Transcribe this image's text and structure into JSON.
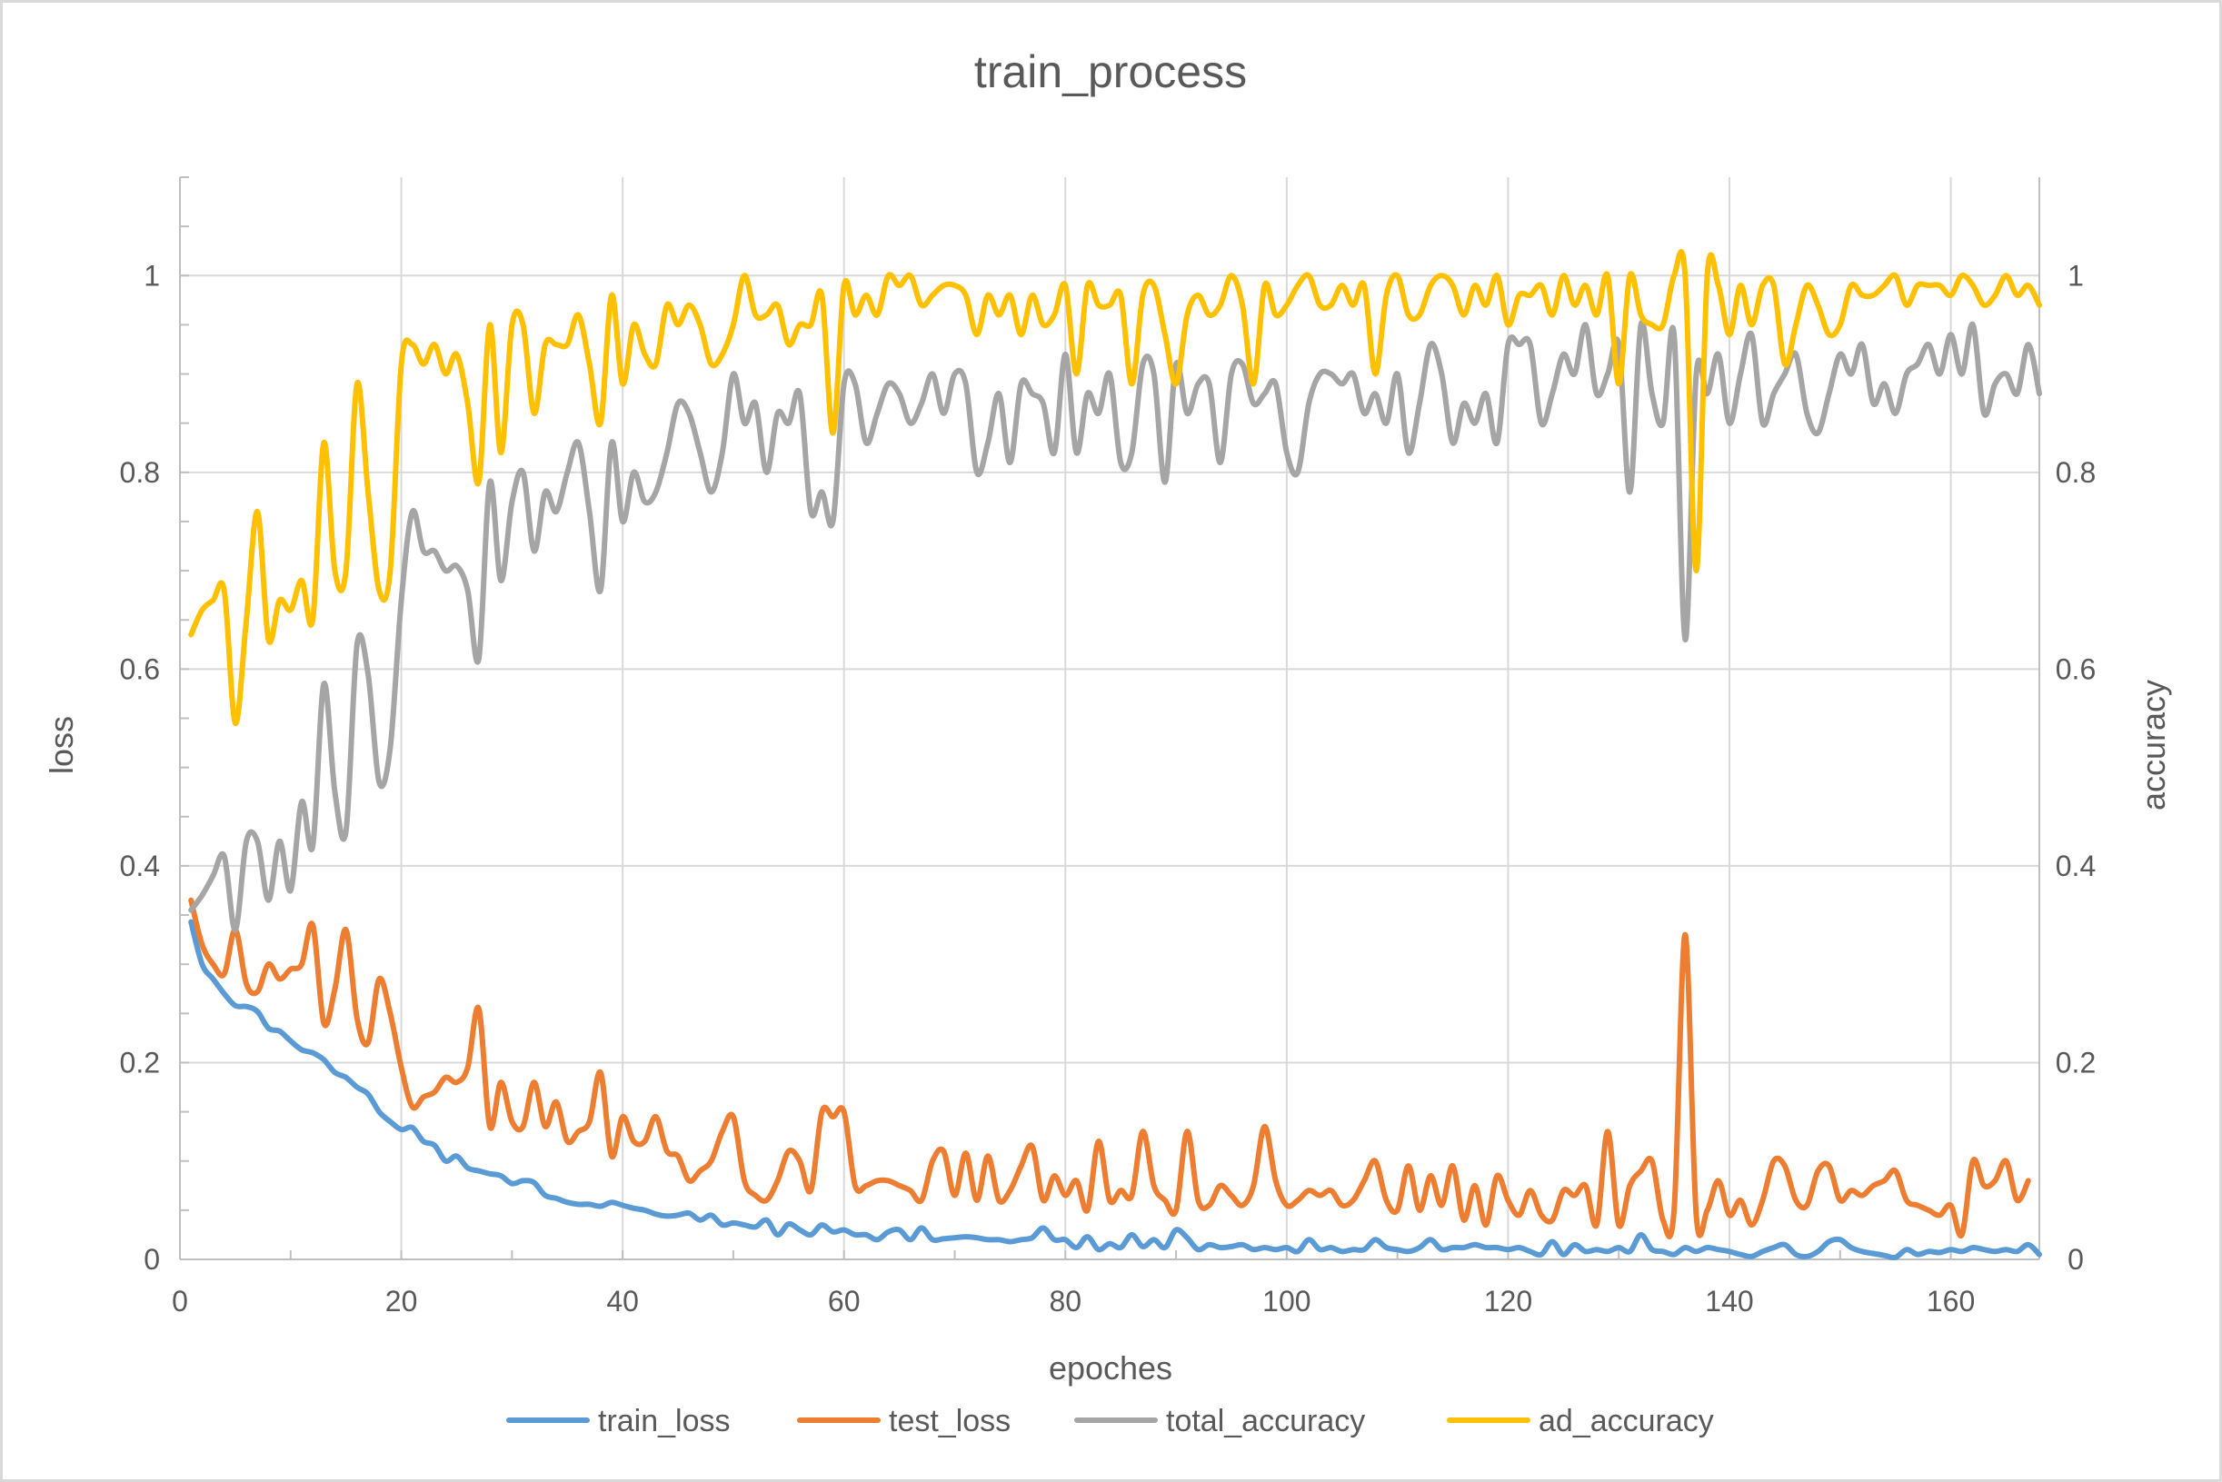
{
  "chart_data": {
    "type": "line",
    "title": "train_process",
    "xlabel": "epoches",
    "ylabel_left": "loss",
    "ylabel_right": "accuracy",
    "xlim": [
      0,
      168
    ],
    "ylim_left": [
      0,
      1.1
    ],
    "ylim_right": [
      0,
      1.1
    ],
    "x_ticks": [
      0,
      20,
      40,
      60,
      80,
      100,
      120,
      140,
      160
    ],
    "y_ticks_left": [
      "0",
      "0.2",
      "0.4",
      "0.6",
      "0.8",
      "1"
    ],
    "y_ticks_right": [
      "0",
      "0.2",
      "0.4",
      "0.6",
      "0.8",
      "1"
    ],
    "grid": "vertical-and-horizontal",
    "legend_position": "bottom",
    "series": [
      {
        "name": "train_loss",
        "axis": "left",
        "color": "#5B9BD5",
        "values": [
          0.343,
          0.3,
          0.285,
          0.27,
          0.258,
          0.257,
          0.252,
          0.235,
          0.232,
          0.222,
          0.213,
          0.21,
          0.203,
          0.19,
          0.185,
          0.175,
          0.168,
          0.15,
          0.14,
          0.132,
          0.134,
          0.12,
          0.116,
          0.1,
          0.105,
          0.093,
          0.09,
          0.087,
          0.085,
          0.077,
          0.08,
          0.078,
          0.065,
          0.062,
          0.058,
          0.056,
          0.056,
          0.054,
          0.058,
          0.055,
          0.052,
          0.05,
          0.046,
          0.044,
          0.045,
          0.047,
          0.04,
          0.045,
          0.035,
          0.037,
          0.035,
          0.033,
          0.04,
          0.025,
          0.036,
          0.03,
          0.025,
          0.035,
          0.028,
          0.03,
          0.025,
          0.025,
          0.02,
          0.028,
          0.03,
          0.02,
          0.032,
          0.02,
          0.021,
          0.022,
          0.023,
          0.022,
          0.02,
          0.02,
          0.018,
          0.02,
          0.022,
          0.032,
          0.02,
          0.02,
          0.012,
          0.023,
          0.01,
          0.016,
          0.012,
          0.025,
          0.013,
          0.02,
          0.012,
          0.03,
          0.022,
          0.01,
          0.015,
          0.012,
          0.013,
          0.015,
          0.01,
          0.012,
          0.01,
          0.012,
          0.008,
          0.02,
          0.01,
          0.012,
          0.008,
          0.01,
          0.01,
          0.02,
          0.012,
          0.01,
          0.008,
          0.012,
          0.02,
          0.01,
          0.012,
          0.012,
          0.015,
          0.012,
          0.012,
          0.01,
          0.012,
          0.008,
          0.005,
          0.018,
          0.005,
          0.015,
          0.008,
          0.01,
          0.008,
          0.012,
          0.008,
          0.025,
          0.01,
          0.008,
          0.005,
          0.012,
          0.008,
          0.012,
          0.01,
          0.008,
          0.005,
          0.003,
          0.008,
          0.012,
          0.015,
          0.005,
          0.003,
          0.008,
          0.018,
          0.02,
          0.012,
          0.008,
          0.006,
          0.004,
          0.002,
          0.01,
          0.005,
          0.008,
          0.007,
          0.01,
          0.008,
          0.012,
          0.01,
          0.008,
          0.01,
          0.008,
          0.015,
          0.005
        ]
      },
      {
        "name": "test_loss",
        "axis": "left",
        "color": "#ED7D31",
        "values": [
          0.365,
          0.32,
          0.3,
          0.29,
          0.335,
          0.28,
          0.272,
          0.3,
          0.285,
          0.295,
          0.3,
          0.34,
          0.24,
          0.275,
          0.335,
          0.245,
          0.22,
          0.285,
          0.25,
          0.195,
          0.155,
          0.165,
          0.17,
          0.185,
          0.18,
          0.195,
          0.255,
          0.135,
          0.18,
          0.14,
          0.135,
          0.18,
          0.135,
          0.16,
          0.12,
          0.13,
          0.14,
          0.19,
          0.105,
          0.145,
          0.12,
          0.12,
          0.145,
          0.11,
          0.105,
          0.08,
          0.09,
          0.1,
          0.13,
          0.145,
          0.08,
          0.065,
          0.06,
          0.08,
          0.11,
          0.1,
          0.07,
          0.15,
          0.145,
          0.15,
          0.075,
          0.075,
          0.08,
          0.08,
          0.075,
          0.07,
          0.06,
          0.1,
          0.11,
          0.065,
          0.108,
          0.06,
          0.105,
          0.06,
          0.07,
          0.095,
          0.115,
          0.06,
          0.085,
          0.065,
          0.08,
          0.05,
          0.12,
          0.06,
          0.07,
          0.065,
          0.13,
          0.075,
          0.06,
          0.05,
          0.13,
          0.06,
          0.055,
          0.075,
          0.065,
          0.055,
          0.075,
          0.135,
          0.08,
          0.055,
          0.06,
          0.07,
          0.065,
          0.07,
          0.055,
          0.06,
          0.08,
          0.1,
          0.06,
          0.05,
          0.095,
          0.05,
          0.085,
          0.055,
          0.095,
          0.04,
          0.075,
          0.035,
          0.085,
          0.06,
          0.045,
          0.07,
          0.045,
          0.04,
          0.07,
          0.065,
          0.075,
          0.035,
          0.13,
          0.035,
          0.075,
          0.09,
          0.1,
          0.04,
          0.05,
          0.33,
          0.045,
          0.05,
          0.08,
          0.045,
          0.06,
          0.035,
          0.06,
          0.1,
          0.095,
          0.06,
          0.055,
          0.09,
          0.095,
          0.06,
          0.07,
          0.065,
          0.075,
          0.08,
          0.09,
          0.06,
          0.055,
          0.05,
          0.045,
          0.055,
          0.025,
          0.1,
          0.075,
          0.08,
          0.1,
          0.06,
          0.08
        ]
      },
      {
        "name": "total_accuracy",
        "axis": "right",
        "color": "#A5A5A5",
        "values": [
          0.355,
          0.37,
          0.39,
          0.41,
          0.335,
          0.425,
          0.425,
          0.365,
          0.425,
          0.375,
          0.465,
          0.42,
          0.585,
          0.475,
          0.435,
          0.625,
          0.595,
          0.485,
          0.52,
          0.67,
          0.76,
          0.72,
          0.72,
          0.7,
          0.705,
          0.68,
          0.61,
          0.79,
          0.69,
          0.77,
          0.8,
          0.72,
          0.78,
          0.76,
          0.8,
          0.83,
          0.76,
          0.68,
          0.83,
          0.75,
          0.8,
          0.77,
          0.78,
          0.82,
          0.87,
          0.86,
          0.82,
          0.78,
          0.82,
          0.9,
          0.85,
          0.87,
          0.8,
          0.86,
          0.85,
          0.88,
          0.76,
          0.78,
          0.75,
          0.89,
          0.89,
          0.83,
          0.86,
          0.89,
          0.88,
          0.85,
          0.87,
          0.9,
          0.86,
          0.9,
          0.89,
          0.8,
          0.83,
          0.88,
          0.81,
          0.89,
          0.88,
          0.87,
          0.82,
          0.92,
          0.82,
          0.88,
          0.86,
          0.9,
          0.81,
          0.82,
          0.91,
          0.9,
          0.79,
          0.91,
          0.86,
          0.89,
          0.89,
          0.81,
          0.9,
          0.91,
          0.87,
          0.88,
          0.89,
          0.82,
          0.8,
          0.87,
          0.9,
          0.9,
          0.89,
          0.9,
          0.86,
          0.88,
          0.85,
          0.9,
          0.82,
          0.87,
          0.93,
          0.9,
          0.83,
          0.87,
          0.85,
          0.88,
          0.83,
          0.93,
          0.93,
          0.93,
          0.85,
          0.88,
          0.92,
          0.9,
          0.95,
          0.88,
          0.9,
          0.93,
          0.78,
          0.95,
          0.88,
          0.85,
          0.94,
          0.63,
          0.9,
          0.88,
          0.92,
          0.85,
          0.9,
          0.94,
          0.85,
          0.88,
          0.9,
          0.92,
          0.86,
          0.84,
          0.88,
          0.92,
          0.9,
          0.93,
          0.87,
          0.89,
          0.86,
          0.9,
          0.91,
          0.93,
          0.9,
          0.94,
          0.9,
          0.95,
          0.86,
          0.89,
          0.9,
          0.88,
          0.93,
          0.88
        ]
      },
      {
        "name": "ad_accuracy",
        "axis": "right",
        "color": "#FFC000",
        "values": [
          0.635,
          0.66,
          0.67,
          0.68,
          0.545,
          0.65,
          0.76,
          0.63,
          0.67,
          0.66,
          0.69,
          0.65,
          0.83,
          0.7,
          0.7,
          0.89,
          0.78,
          0.68,
          0.7,
          0.91,
          0.93,
          0.91,
          0.93,
          0.9,
          0.92,
          0.87,
          0.79,
          0.95,
          0.82,
          0.95,
          0.95,
          0.86,
          0.93,
          0.93,
          0.93,
          0.96,
          0.91,
          0.85,
          0.98,
          0.89,
          0.95,
          0.92,
          0.91,
          0.97,
          0.95,
          0.97,
          0.95,
          0.91,
          0.92,
          0.95,
          1.0,
          0.96,
          0.96,
          0.97,
          0.93,
          0.95,
          0.95,
          0.98,
          0.84,
          0.99,
          0.96,
          0.98,
          0.96,
          1.0,
          0.99,
          1.0,
          0.97,
          0.98,
          0.99,
          0.99,
          0.98,
          0.94,
          0.98,
          0.96,
          0.98,
          0.94,
          0.98,
          0.95,
          0.96,
          0.99,
          0.9,
          0.99,
          0.97,
          0.97,
          0.98,
          0.89,
          0.98,
          0.99,
          0.94,
          0.89,
          0.96,
          0.98,
          0.96,
          0.97,
          1.0,
          0.97,
          0.89,
          0.99,
          0.96,
          0.97,
          0.99,
          1.0,
          0.97,
          0.97,
          0.99,
          0.97,
          0.99,
          0.9,
          0.98,
          1.0,
          0.96,
          0.96,
          0.99,
          1.0,
          0.99,
          0.96,
          0.99,
          0.97,
          1.0,
          0.95,
          0.98,
          0.98,
          0.99,
          0.96,
          1.0,
          0.97,
          0.99,
          0.96,
          1.0,
          0.89,
          1.0,
          0.96,
          0.95,
          0.95,
          1.0,
          1.0,
          0.7,
          1.0,
          0.99,
          0.94,
          0.99,
          0.95,
          0.99,
          0.99,
          0.91,
          0.95,
          0.99,
          0.97,
          0.94,
          0.95,
          0.99,
          0.98,
          0.98,
          0.99,
          1.0,
          0.97,
          0.99,
          0.99,
          0.99,
          0.98,
          1.0,
          0.99,
          0.97,
          0.98,
          1.0,
          0.98,
          0.99,
          0.97
        ]
      }
    ]
  }
}
